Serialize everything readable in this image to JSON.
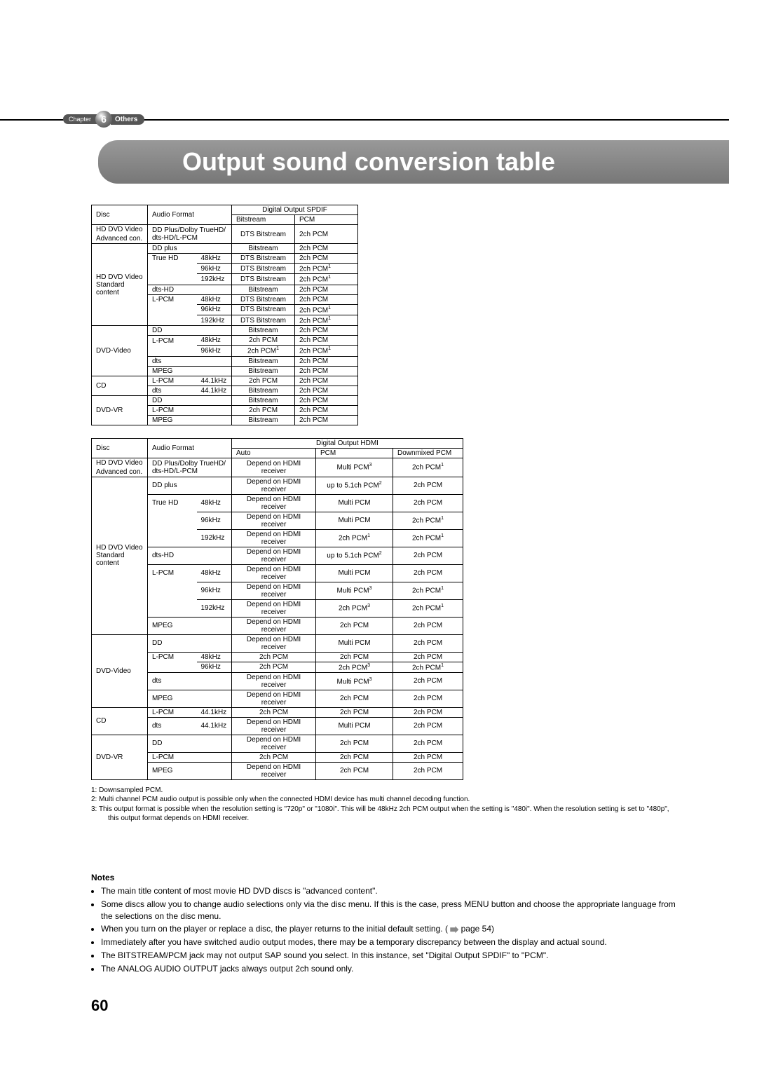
{
  "chapter": {
    "label": "Chapter",
    "num": "6",
    "section": "Others"
  },
  "title": "Output sound conversion table",
  "spdif": {
    "header_top": "Digital Output SPDIF",
    "disc": "Disc",
    "af": "Audio Format",
    "cols": [
      "Bitstream",
      "PCM"
    ],
    "g1": {
      "disc1": "HD DVD Video",
      "disc2": "Advanced con.",
      "af": "DD Plus/Dolby TrueHD/\ndts-HD/L-PCM",
      "bs": "DTS Bitstream",
      "pcm": "2ch PCM"
    },
    "g2": {
      "disc": "HD DVD Video\nStandard\ncontent",
      "rows": [
        [
          "DD plus",
          "",
          "Bitstream",
          "2ch PCM"
        ],
        [
          "True HD",
          "48kHz",
          "DTS Bitstream",
          "2ch PCM"
        ],
        [
          "",
          "96kHz",
          "DTS Bitstream",
          "2ch PCM",
          "1"
        ],
        [
          "",
          "192kHz",
          "DTS Bitstream",
          "2ch PCM",
          "1"
        ],
        [
          "dts-HD",
          "",
          "Bitstream",
          "2ch PCM"
        ],
        [
          "L-PCM",
          "48kHz",
          "DTS Bitstream",
          "2ch PCM"
        ],
        [
          "",
          "96kHz",
          "DTS Bitstream",
          "2ch PCM",
          "1"
        ],
        [
          "",
          "192kHz",
          "DTS Bitstream",
          "2ch PCM",
          "1"
        ]
      ]
    },
    "g3": {
      "disc": "DVD-Video",
      "rows": [
        [
          "DD",
          "",
          "Bitstream",
          "2ch PCM"
        ],
        [
          "L-PCM",
          "48kHz",
          "2ch PCM",
          "2ch PCM"
        ],
        [
          "",
          "96kHz",
          "2ch PCM",
          "2ch PCM",
          "1",
          "1"
        ],
        [
          "dts",
          "",
          "Bitstream",
          "2ch PCM"
        ],
        [
          "MPEG",
          "",
          "Bitstream",
          "2ch PCM"
        ]
      ]
    },
    "g4": {
      "disc": "CD",
      "rows": [
        [
          "L-PCM",
          "44.1kHz",
          "2ch PCM",
          "2ch PCM"
        ],
        [
          "dts",
          "44.1kHz",
          "Bitstream",
          "2ch PCM"
        ]
      ]
    },
    "g5": {
      "disc": "DVD-VR",
      "rows": [
        [
          "DD",
          "",
          "Bitstream",
          "2ch PCM"
        ],
        [
          "L-PCM",
          "",
          "2ch PCM",
          "2ch PCM"
        ],
        [
          "MPEG",
          "",
          "Bitstream",
          "2ch PCM"
        ]
      ]
    }
  },
  "hdmi": {
    "header_top": "Digital Output HDMI",
    "disc": "Disc",
    "af": "Audio Format",
    "cols": [
      "Auto",
      "PCM",
      "Downmixed PCM"
    ],
    "g1": {
      "disc1": "HD DVD Video",
      "disc2": "Advanced con.",
      "af": "DD Plus/Dolby TrueHD/\ndts-HD/L-PCM",
      "auto": "Depend on HDMI receiver",
      "pcm": "Multi PCM",
      "pcm_s": "3",
      "dm": "2ch PCM",
      "dm_s": "1"
    },
    "g2": {
      "disc": "HD DVD Video\nStandard\ncontent",
      "rows": [
        [
          "DD plus",
          "",
          "Depend on HDMI receiver",
          "up to 5.1ch PCM",
          "2",
          "2ch PCM",
          ""
        ],
        [
          "True HD",
          "48kHz",
          "Depend on HDMI receiver",
          "Multi PCM",
          "",
          "2ch PCM",
          ""
        ],
        [
          "",
          "96kHz",
          "Depend on HDMI receiver",
          "Multi PCM",
          "",
          "2ch PCM",
          "1"
        ],
        [
          "",
          "192kHz",
          "Depend on HDMI receiver",
          "2ch PCM",
          "1",
          "2ch PCM",
          "1"
        ],
        [
          "dts-HD",
          "",
          "Depend on HDMI receiver",
          "up to 5.1ch PCM",
          "2",
          "2ch PCM",
          ""
        ],
        [
          "L-PCM",
          "48kHz",
          "Depend on HDMI receiver",
          "Multi PCM",
          "",
          "2ch PCM",
          ""
        ],
        [
          "",
          "96kHz",
          "Depend on HDMI receiver",
          "Multi PCM",
          "3",
          "2ch PCM",
          "1"
        ],
        [
          "",
          "192kHz",
          "Depend on HDMI receiver",
          "2ch PCM",
          "3",
          "2ch PCM",
          "1"
        ],
        [
          "MPEG",
          "",
          "Depend on HDMI receiver",
          "2ch PCM",
          "",
          "2ch PCM",
          ""
        ]
      ]
    },
    "g3": {
      "disc": "DVD-Video",
      "rows": [
        [
          "DD",
          "",
          "Depend on HDMI receiver",
          "Multi PCM",
          "",
          "2ch PCM",
          ""
        ],
        [
          "L-PCM",
          "48kHz",
          "2ch PCM",
          "2ch PCM",
          "",
          "2ch PCM",
          ""
        ],
        [
          "",
          "96kHz",
          "2ch PCM",
          "2ch PCM",
          "3",
          "2ch PCM",
          "1"
        ],
        [
          "dts",
          "",
          "Depend on HDMI receiver",
          "Multi PCM",
          "3",
          "2ch PCM",
          ""
        ],
        [
          "MPEG",
          "",
          "Depend on HDMI receiver",
          "2ch PCM",
          "",
          "2ch PCM",
          ""
        ]
      ]
    },
    "g4": {
      "disc": "CD",
      "rows": [
        [
          "L-PCM",
          "44.1kHz",
          "2ch PCM",
          "2ch PCM",
          "",
          "2ch PCM",
          ""
        ],
        [
          "dts",
          "44.1kHz",
          "Depend on HDMI receiver",
          "Multi PCM",
          "",
          "2ch PCM",
          ""
        ]
      ]
    },
    "g5": {
      "disc": "DVD-VR",
      "rows": [
        [
          "DD",
          "",
          "Depend on HDMI receiver",
          "2ch PCM",
          "",
          "2ch PCM",
          ""
        ],
        [
          "L-PCM",
          "",
          "2ch PCM",
          "2ch PCM",
          "",
          "2ch PCM",
          ""
        ],
        [
          "MPEG",
          "",
          "Depend on HDMI receiver",
          "2ch PCM",
          "",
          "2ch PCM",
          ""
        ]
      ]
    }
  },
  "footnotes": [
    "1:   Downsampled PCM.",
    "2:   Multi channel PCM audio output is possible only when the connected HDMI device has multi channel decoding function.",
    "3:   This output format is possible when the resolution setting is \"720p\" or \"1080i\". This will be 48kHz 2ch PCM output when the setting is \"480i\". When the resolution setting is set to \"480p\", this output format depends on HDMI receiver."
  ],
  "notes": {
    "heading": "Notes",
    "items": [
      "The main title content of most movie HD DVD discs is \"advanced content\".",
      "Some discs allow you to change audio selections only via the disc menu. If this is the case, press MENU button and choose the appropriate language from the selections on the disc menu.",
      "When you turn on the player or replace a disc, the player returns to the initial default setting. (        page 54)",
      "Immediately after you have switched audio output modes, there may be a temporary discrepancy between the display and actual sound.",
      "The BITSTREAM/PCM jack may not output SAP sound you select. In this instance, set \"Digital Output SPDIF\" to \"PCM\".",
      "The ANALOG AUDIO OUTPUT jacks always output 2ch sound only."
    ]
  },
  "page_ref_icon_note_index": 2,
  "pagenum": "60",
  "col_widths": {
    "spdif": {
      "disc": 80,
      "af1": 70,
      "af2": 50,
      "out": 90
    },
    "hdmi": {
      "disc": 80,
      "af1": 70,
      "af2": 50,
      "out": 120,
      "out2": 110,
      "out3": 100
    }
  }
}
